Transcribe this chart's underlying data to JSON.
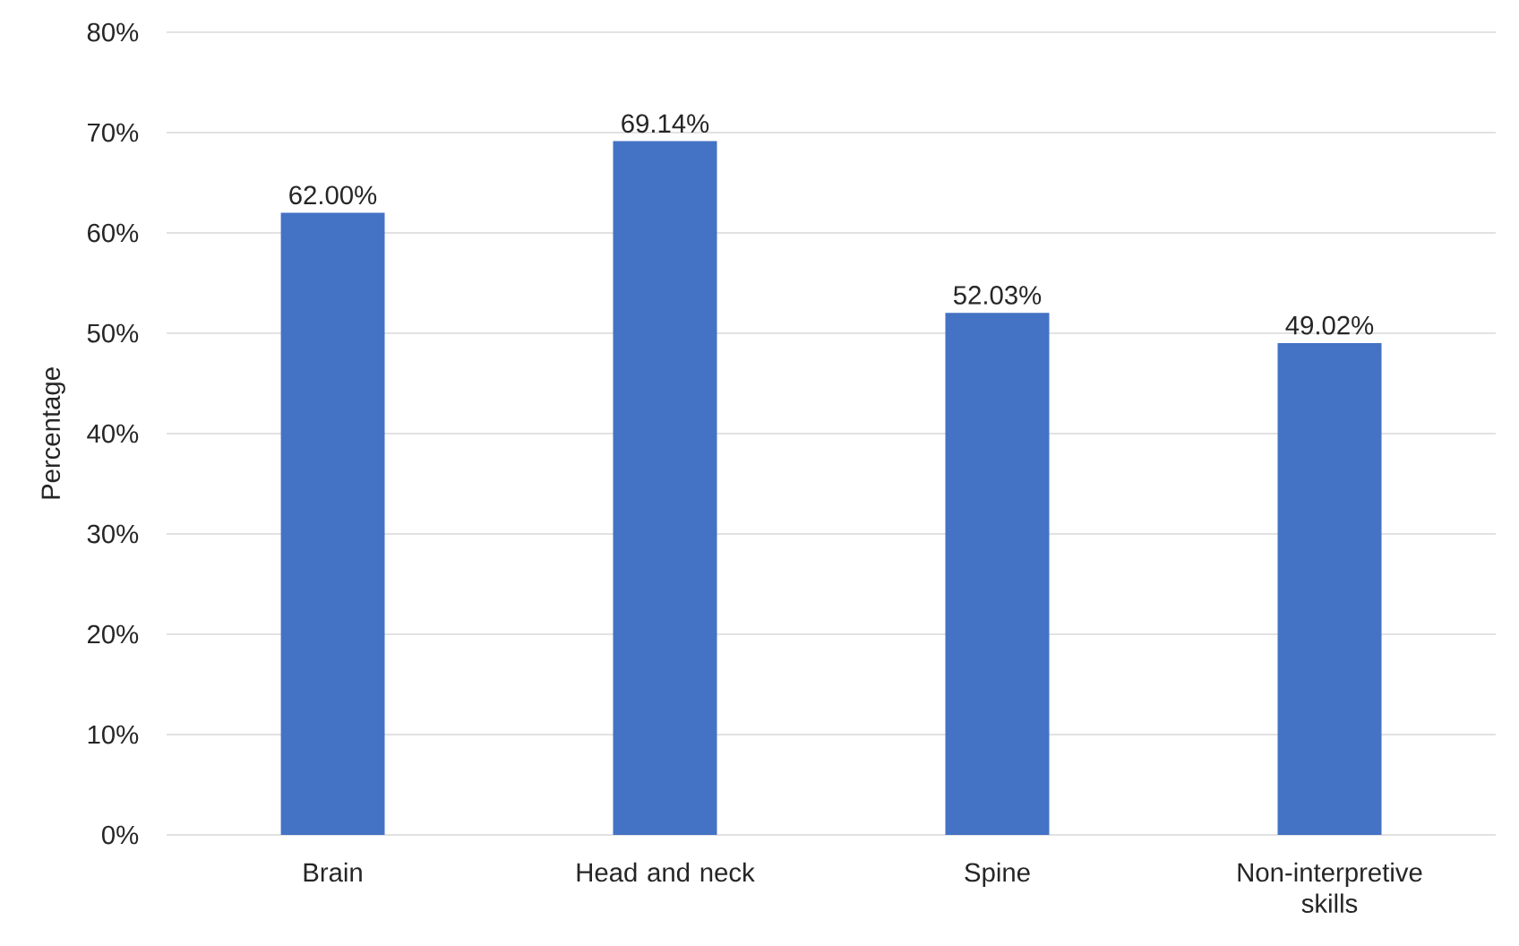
{
  "chart_data": {
    "type": "bar",
    "ylabel": "Percentage",
    "categories": [
      "Brain",
      "Head and neck",
      "Spine",
      "Non-interpretive skills"
    ],
    "values": [
      62.0,
      69.14,
      52.03,
      49.02
    ],
    "value_labels": [
      "62.00%",
      "69.14%",
      "52.03%",
      "49.02%"
    ],
    "color": "#4472c4",
    "ylim": [
      0,
      80
    ],
    "yticks": [
      {
        "value": 0,
        "label": "0%"
      },
      {
        "value": 10,
        "label": "10%"
      },
      {
        "value": 20,
        "label": "20%"
      },
      {
        "value": 30,
        "label": "30%"
      },
      {
        "value": 40,
        "label": "40%"
      },
      {
        "value": 50,
        "label": "50%"
      },
      {
        "value": 60,
        "label": "60%"
      },
      {
        "value": 70,
        "label": "70%"
      },
      {
        "value": 80,
        "label": "80%"
      }
    ],
    "grid": "y"
  }
}
